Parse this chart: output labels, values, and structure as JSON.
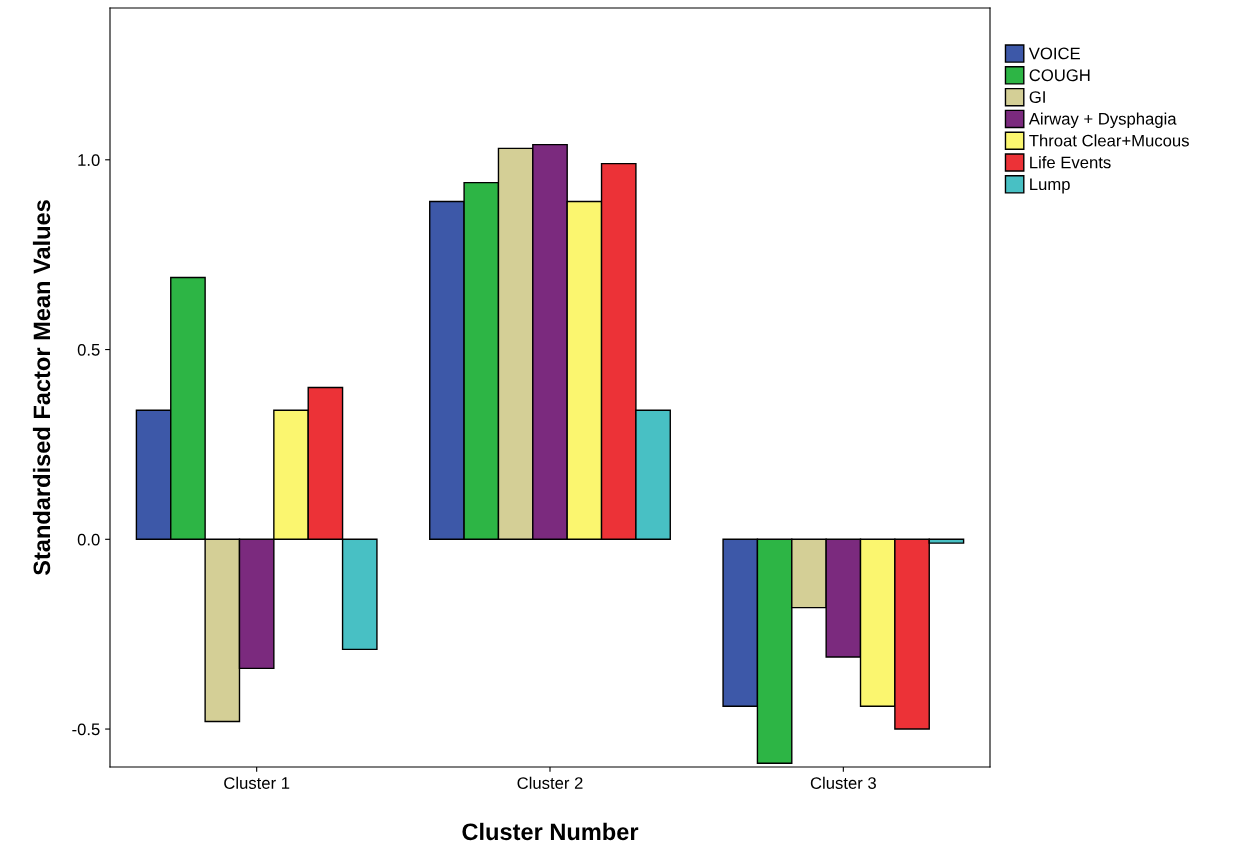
{
  "chart_data": {
    "type": "bar",
    "xlabel": "Cluster Number",
    "ylabel": "Standardised Factor Mean Values",
    "categories": [
      "Cluster 1",
      "Cluster 2",
      "Cluster 3"
    ],
    "series": [
      {
        "name": "VOICE",
        "color": "#3d58a8",
        "values": [
          0.34,
          0.89,
          -0.44
        ]
      },
      {
        "name": "COUGH",
        "color": "#2db545",
        "values": [
          0.69,
          0.94,
          -0.59
        ]
      },
      {
        "name": "GI",
        "color": "#d4cf96",
        "values": [
          -0.48,
          1.03,
          -0.18
        ]
      },
      {
        "name": "Airway + Dysphagia",
        "color": "#7b2a7e",
        "values": [
          -0.34,
          1.04,
          -0.31
        ]
      },
      {
        "name": "Throat Clear+Mucous",
        "color": "#fbf66f",
        "values": [
          0.34,
          0.89,
          -0.44
        ]
      },
      {
        "name": "Life Events",
        "color": "#ec3237",
        "values": [
          0.4,
          0.99,
          -0.5
        ]
      },
      {
        "name": "Lump",
        "color": "#48c0c4",
        "values": [
          -0.29,
          0.34,
          -0.01
        ]
      }
    ],
    "ylim": [
      -0.6,
      1.4
    ],
    "yticks": [
      {
        "value": -0.5,
        "label": "-0.5"
      },
      {
        "value": 0,
        "label": "0.0"
      },
      {
        "value": 0.5,
        "label": "0.5"
      },
      {
        "value": 1,
        "label": "1.0"
      }
    ],
    "grid": false,
    "legend": "top right"
  }
}
